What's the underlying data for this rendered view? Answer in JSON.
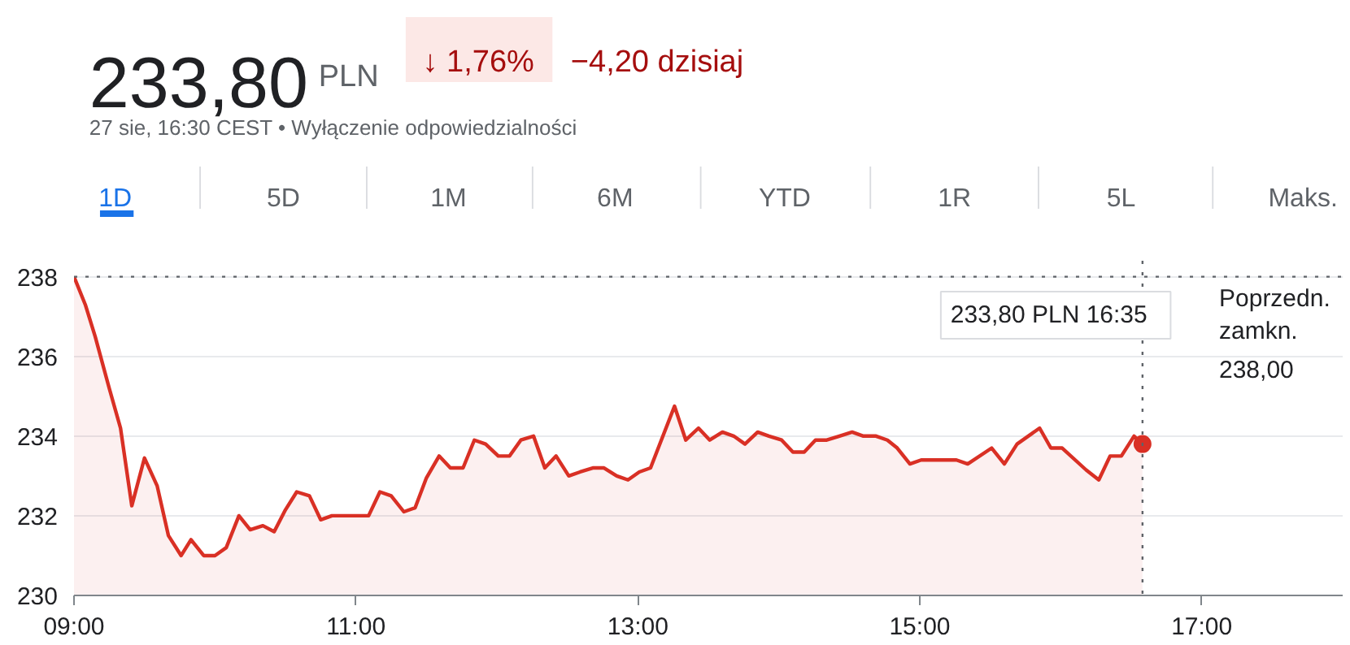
{
  "chart_data": {
    "type": "area",
    "title": "233,80",
    "subtitle": "27 sie, 16:30 CEST • Wyłączenie odpowiedzialności",
    "annotations": [
      "PLN",
      "↓ 1,76%",
      "−4,20 dzisiaj",
      "1D",
      "5D",
      "1M",
      "6M",
      "YTD",
      "1R",
      "5L",
      "Maks.",
      "233,80 PLN 16:35"
    ],
    "x": [
      9.0,
      9.08,
      9.15,
      9.25,
      9.33,
      9.41,
      9.5,
      9.59,
      9.67,
      9.76,
      9.83,
      9.92,
      10.0,
      10.08,
      10.17,
      10.25,
      10.34,
      10.42,
      10.5,
      10.58,
      10.67,
      10.75,
      10.83,
      11.09,
      11.17,
      11.25,
      11.34,
      11.42,
      11.5,
      11.59,
      11.67,
      11.76,
      11.84,
      11.92,
      12.01,
      12.09,
      12.17,
      12.26,
      12.34,
      12.42,
      12.51,
      12.59,
      12.68,
      12.76,
      12.85,
      12.93,
      13.01,
      13.09,
      13.26,
      13.34,
      13.43,
      13.51,
      13.6,
      13.68,
      13.76,
      13.85,
      13.93,
      14.02,
      14.1,
      14.18,
      14.26,
      14.34,
      14.43,
      14.52,
      14.6,
      14.69,
      14.77,
      14.84,
      14.93,
      15.01,
      15.26,
      15.34,
      15.51,
      15.6,
      15.69,
      15.85,
      15.93,
      16.01,
      16.18,
      16.27,
      16.35,
      16.43,
      16.52,
      16.58
    ],
    "series": [
      {
        "color": "#d93025",
        "values": [
          238.0,
          237.3,
          236.5,
          235.2,
          234.2,
          232.25,
          233.45,
          232.75,
          231.5,
          231.0,
          231.4,
          231.0,
          231.0,
          231.2,
          232.0,
          231.65,
          231.75,
          231.6,
          232.15,
          232.6,
          232.5,
          231.9,
          232.0,
          232.0,
          232.6,
          232.5,
          232.1,
          232.2,
          232.95,
          233.5,
          233.2,
          233.2,
          233.9,
          233.8,
          233.5,
          233.5,
          233.9,
          234.0,
          233.2,
          233.5,
          233.0,
          233.1,
          233.2,
          233.2,
          233.0,
          232.9,
          233.1,
          233.2,
          234.75,
          233.9,
          234.2,
          233.9,
          234.1,
          234.0,
          233.8,
          234.1,
          234.0,
          233.9,
          233.6,
          233.6,
          233.9,
          233.9,
          234.0,
          234.1,
          234.0,
          234.0,
          233.9,
          233.7,
          233.3,
          233.4,
          233.4,
          233.3,
          233.7,
          233.3,
          233.8,
          234.2,
          233.7,
          233.7,
          233.15,
          232.9,
          233.5,
          233.5,
          234.0,
          233.8
        ]
      }
    ],
    "xlim": [
      9,
      18
    ],
    "ylim": [
      230,
      238.4
    ],
    "xticks": [
      {
        "value": 9,
        "label": "09:00"
      },
      {
        "value": 11,
        "label": "11:00"
      },
      {
        "value": 13,
        "label": "13:00"
      },
      {
        "value": 15,
        "label": "15:00"
      },
      {
        "value": 17,
        "label": "17:00"
      }
    ],
    "yticks": [
      230,
      232,
      234,
      236,
      238
    ],
    "grid": "y",
    "ref_lines": [
      {
        "axis": "y",
        "value": 238,
        "label": "Poprzedn.\nzamkn.\n238,00",
        "color": "#5f6368",
        "line_style": "dotted"
      },
      {
        "axis": "x",
        "value": 16.58,
        "color": "#5f6368",
        "line_style": "dotted"
      }
    ]
  }
}
